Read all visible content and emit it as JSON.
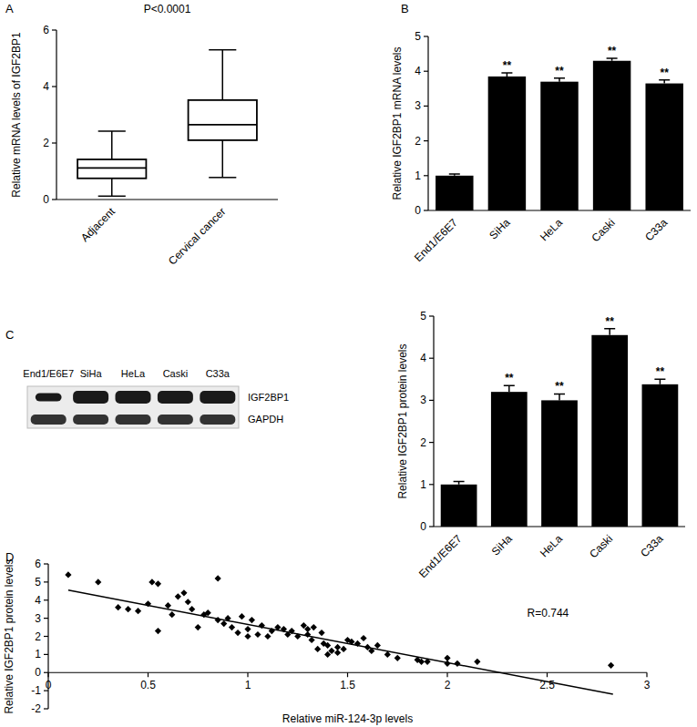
{
  "chart_data": [
    {
      "type": "box",
      "panel": "A",
      "title": "P<0.0001",
      "y_label": "Relative mRNA levels of IGF2BP1",
      "categories": [
        "Adjacent",
        "Cervical cancer"
      ],
      "boxes": [
        {
          "min": 0.12,
          "q1": 0.75,
          "median": 1.12,
          "q3": 1.42,
          "max": 2.42
        },
        {
          "min": 0.78,
          "q1": 2.1,
          "median": 2.65,
          "q3": 3.52,
          "max": 5.3
        }
      ],
      "color": "#000000",
      "ylim": [
        0,
        6
      ],
      "yticks": [
        0,
        2,
        4,
        6
      ]
    },
    {
      "type": "bar",
      "panel": "B",
      "y_label": "Relative IGF2BP1 mRNA levels",
      "categories": [
        "End1/E6E7",
        "SiHa",
        "HeLa",
        "Caski",
        "C33a"
      ],
      "values": [
        1.0,
        3.85,
        3.7,
        4.3,
        3.65
      ],
      "errors": [
        0.05,
        0.1,
        0.1,
        0.07,
        0.1
      ],
      "significance": [
        null,
        "**",
        "**",
        "**",
        "**"
      ],
      "color": "#000000",
      "ylim": [
        0,
        5
      ],
      "yticks": [
        0,
        1,
        2,
        3,
        4,
        5
      ]
    },
    {
      "type": "bar",
      "panel": "C",
      "blot": {
        "lanes": [
          "End1/E6E7",
          "SiHa",
          "HeLa",
          "Caski",
          "C33a"
        ],
        "bands": [
          "IGF2BP1",
          "GAPDH"
        ]
      },
      "y_label": "Relative IGF2BP1 protein levels",
      "categories": [
        "End1/E6E7",
        "SiHa",
        "HeLa",
        "Caski",
        "C33a"
      ],
      "values": [
        1.0,
        3.2,
        3.0,
        4.55,
        3.38
      ],
      "errors": [
        0.07,
        0.15,
        0.15,
        0.15,
        0.12
      ],
      "significance": [
        null,
        "**",
        "**",
        "**",
        "**"
      ],
      "color": "#000000",
      "ylim": [
        0,
        5
      ],
      "yticks": [
        0,
        1,
        2,
        3,
        4,
        5
      ]
    },
    {
      "type": "scatter",
      "panel": "D",
      "x_label": "Relative miR-124-3p levels",
      "y_label": "Relative IGF2BP1 protein levels",
      "annotation": "R=0.744",
      "marker": "diamond",
      "color": "#000000",
      "x": [
        0.1,
        0.25,
        0.35,
        0.4,
        0.45,
        0.5,
        0.52,
        0.55,
        0.55,
        0.6,
        0.62,
        0.65,
        0.68,
        0.7,
        0.72,
        0.75,
        0.78,
        0.8,
        0.85,
        0.85,
        0.88,
        0.9,
        0.92,
        0.95,
        0.97,
        1.0,
        1.0,
        1.02,
        1.05,
        1.07,
        1.1,
        1.12,
        1.15,
        1.18,
        1.2,
        1.22,
        1.25,
        1.28,
        1.3,
        1.3,
        1.32,
        1.33,
        1.35,
        1.37,
        1.38,
        1.4,
        1.4,
        1.42,
        1.45,
        1.45,
        1.48,
        1.5,
        1.52,
        1.55,
        1.58,
        1.6,
        1.62,
        1.65,
        1.7,
        1.75,
        1.85,
        1.87,
        1.9,
        2.0,
        2.0,
        2.05,
        2.15,
        2.82
      ],
      "values": [
        5.4,
        5.0,
        3.6,
        3.5,
        3.4,
        3.8,
        5.0,
        4.9,
        2.3,
        3.7,
        3.2,
        4.2,
        4.4,
        3.9,
        3.5,
        2.5,
        3.2,
        3.3,
        5.2,
        2.9,
        2.7,
        3.0,
        2.5,
        2.2,
        3.1,
        2.0,
        2.4,
        2.9,
        2.1,
        2.6,
        2.0,
        2.3,
        2.5,
        2.4,
        2.1,
        2.3,
        2.0,
        2.6,
        2.4,
        2.1,
        1.8,
        2.5,
        1.3,
        2.2,
        1.6,
        1.0,
        1.5,
        1.2,
        1.1,
        1.4,
        1.3,
        1.8,
        1.7,
        1.6,
        1.9,
        1.4,
        1.2,
        1.5,
        1.0,
        0.8,
        0.7,
        0.6,
        0.6,
        0.8,
        0.5,
        0.5,
        0.6,
        0.4
      ],
      "trend_line": {
        "x": [
          0.1,
          2.83
        ],
        "values": [
          4.55,
          -1.2
        ]
      },
      "xlim": [
        0,
        3
      ],
      "xticks": [
        0,
        0.5,
        1,
        1.5,
        2,
        2.5,
        3
      ],
      "ylim": [
        -2,
        6
      ],
      "yticks": [
        -2,
        -1,
        0,
        1,
        2,
        3,
        4,
        5,
        6
      ]
    }
  ]
}
